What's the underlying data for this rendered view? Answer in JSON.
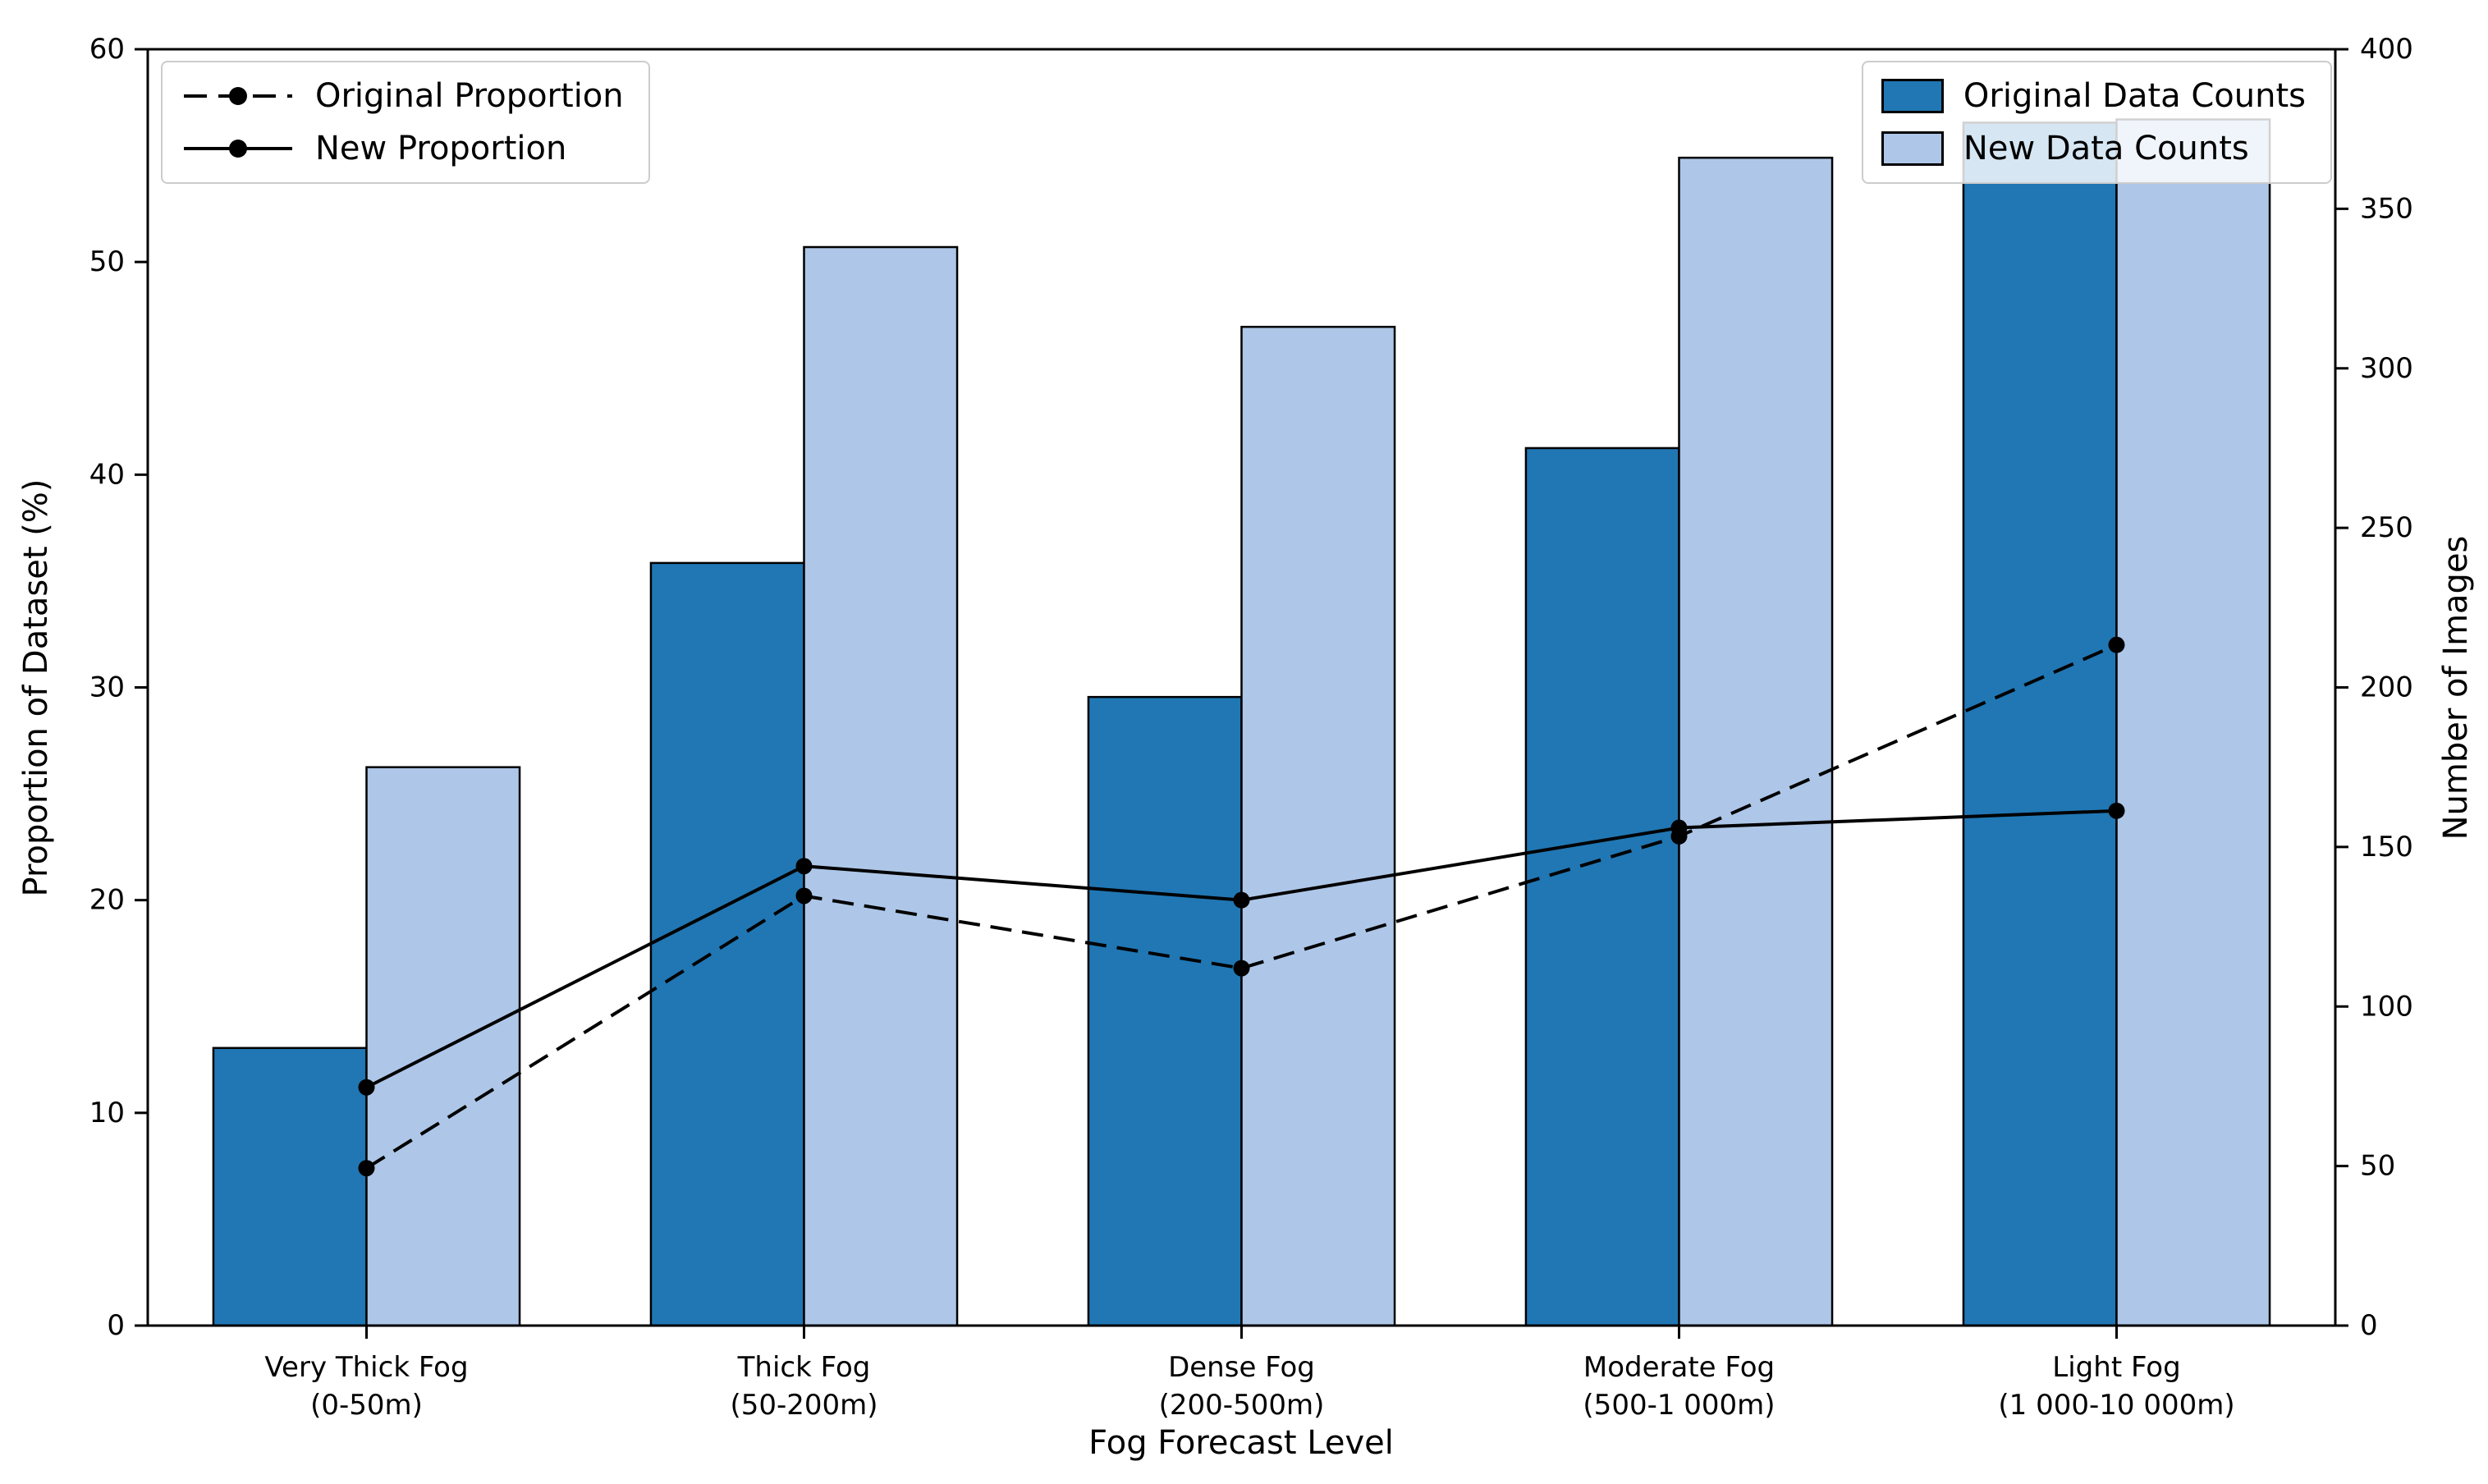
{
  "chart_data": {
    "type": "bar",
    "title": "",
    "xlabel": "Fog Forecast Level",
    "grid": false,
    "categories": [
      "Very Thick Fog",
      "Thick Fog",
      "Dense Fog",
      "Moderate Fog",
      "Light Fog"
    ],
    "category_sublabels": [
      "(0-50m)",
      "(50-200m)",
      "(200-500m)",
      "(500-1 000m)",
      "(1 000-10 000m)"
    ],
    "left_axis": {
      "label": "Proportion of Dataset (%)",
      "min": 0,
      "max": 60,
      "step": 10
    },
    "right_axis": {
      "label": "Number of Images",
      "min": 0,
      "max": 400,
      "step": 50
    },
    "bar_series": [
      {
        "name": "Original Data Counts",
        "axis": "right",
        "color": "#2077B4",
        "edge_color": "#000000",
        "values": [
          87,
          239,
          197,
          275,
          377
        ]
      },
      {
        "name": "New Data Counts",
        "axis": "right",
        "color": "#AEC7E8",
        "edge_color": "#000000",
        "values": [
          175,
          338,
          313,
          366,
          378
        ]
      }
    ],
    "line_series": [
      {
        "name": "Original Proportion",
        "axis": "left",
        "style": "dashed",
        "color": "#000000",
        "marker": "circle",
        "values": [
          7.4,
          20.2,
          16.8,
          23.0,
          32.0
        ]
      },
      {
        "name": "New Proportion",
        "axis": "left",
        "style": "solid",
        "color": "#000000",
        "marker": "circle",
        "values": [
          11.2,
          21.6,
          20.0,
          23.4,
          24.2
        ]
      }
    ],
    "legend_position": {
      "line_legend": "upper left",
      "bar_legend": "upper right"
    }
  },
  "colors": {
    "spine": "#000000",
    "tick": "#000000",
    "background": "#ffffff",
    "legend_border": "#cccccc"
  }
}
